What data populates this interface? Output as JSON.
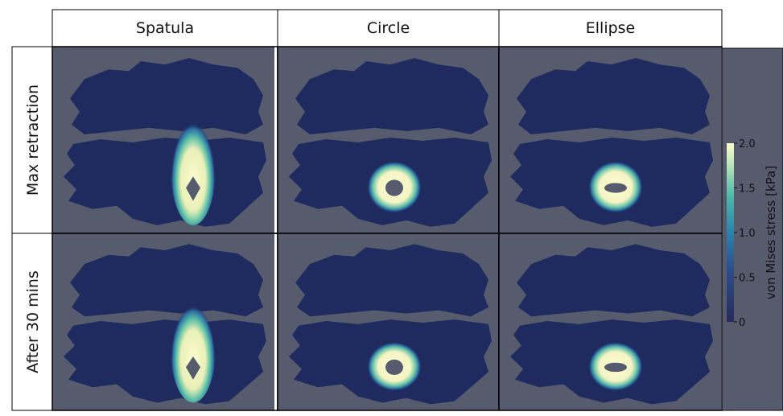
{
  "columns": [
    "Spatula",
    "Circle",
    "Ellipse"
  ],
  "rows": [
    "Max retraction",
    "After 30 mins"
  ],
  "colorbar": {
    "label": "von Mises stress [kPa]",
    "lim": [
      0,
      2
    ],
    "ticks": [
      {
        "value": 2,
        "label": "2.0"
      },
      {
        "value": 1.5,
        "label": "1.5"
      },
      {
        "value": 1,
        "label": "1.0"
      },
      {
        "value": 0.5,
        "label": "0.5"
      },
      0
    ]
  }
}
